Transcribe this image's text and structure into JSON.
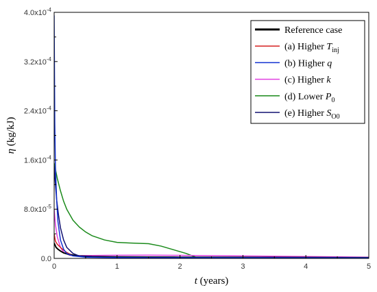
{
  "chart_data": {
    "type": "line",
    "xlabel": {
      "sym": "t",
      "rest": " (years)"
    },
    "ylabel": {
      "sym": "η",
      "rest": " (kg/kJ)"
    },
    "xlim": [
      0,
      5
    ],
    "ylim": [
      0,
      0.0004
    ],
    "x_ticks": [
      {
        "value": 0,
        "label": "0"
      },
      {
        "value": 1,
        "label": "1"
      },
      {
        "value": 2,
        "label": "2"
      },
      {
        "value": 3,
        "label": "3"
      },
      {
        "value": 4,
        "label": "4"
      },
      {
        "value": 5,
        "label": "5"
      }
    ],
    "y_ticks": [
      {
        "value": 0,
        "label": "0.0"
      },
      {
        "value": 8e-05,
        "label": "8.0x10",
        "exp": "-5"
      },
      {
        "value": 0.00016,
        "label": "1.6x10",
        "exp": "-4"
      },
      {
        "value": 0.00024,
        "label": "2.4x10",
        "exp": "-4"
      },
      {
        "value": 0.00032,
        "label": "3.2x10",
        "exp": "-4"
      },
      {
        "value": 0.0004,
        "label": "4.0x10",
        "exp": "-4"
      }
    ],
    "grid": false,
    "legend_position": "top-right",
    "series": [
      {
        "name": "Reference case",
        "name_parts": [
          "Reference case"
        ],
        "color": "#000000",
        "x": [
          0,
          0.03,
          0.06,
          0.1,
          0.15,
          0.25,
          0.4,
          0.6,
          1.0,
          1.5,
          2.0,
          3.0,
          4.0,
          5.0
        ],
        "y": [
          2.5e-05,
          1.8e-05,
          1.5e-05,
          1.2e-05,
          9e-06,
          6e-06,
          4e-06,
          3e-06,
          2.5e-06,
          2.2e-06,
          2e-06,
          1.8e-06,
          1.5e-06,
          1.2e-06
        ]
      },
      {
        "name": "(a) Higher Tinj",
        "name_parts": [
          "(a) Higher ",
          "T",
          "inj"
        ],
        "color": "#d62020",
        "x": [
          0,
          0.02,
          0.05,
          0.08,
          0.12,
          0.18,
          0.25,
          0.35,
          0.5,
          0.8,
          1.2,
          2.0,
          3.0,
          4.0,
          5.0
        ],
        "y": [
          4e-05,
          2.8e-05,
          2.3e-05,
          2e-05,
          1.6e-05,
          1.1e-05,
          7e-06,
          4e-06,
          3e-06,
          2.5e-06,
          2.2e-06,
          2e-06,
          1.8e-06,
          1.5e-06,
          1.2e-06
        ]
      },
      {
        "name": "(b) Higher q",
        "name_parts": [
          "(b) Higher ",
          "q",
          ""
        ],
        "color": "#1030d0",
        "x": [
          0,
          0.01,
          0.02,
          0.04,
          0.06,
          0.1,
          0.15,
          0.2,
          0.3,
          0.5,
          0.8,
          1.5,
          2.5,
          5.0
        ],
        "y": [
          0.000395,
          0.00022,
          0.00015,
          9.5e-05,
          6e-05,
          3e-05,
          1.5e-05,
          8e-06,
          4e-06,
          2e-06,
          1.5e-06,
          1e-06,
          1e-06,
          8e-07
        ]
      },
      {
        "name": "(c) Higher k",
        "name_parts": [
          "(c) Higher ",
          "k",
          ""
        ],
        "color": "#e040e0",
        "x": [
          0,
          0.02,
          0.05,
          0.1,
          0.15,
          0.25,
          0.4,
          0.6,
          0.8,
          1.0,
          1.5,
          2.0,
          2.5,
          3.0,
          4.0,
          5.0
        ],
        "y": [
          8e-05,
          5.5e-05,
          3.5e-05,
          1.8e-05,
          1e-05,
          5e-06,
          4.5e-06,
          4.8e-06,
          5e-06,
          5.2e-06,
          5.3e-06,
          5e-06,
          4.5e-06,
          4e-06,
          3e-06,
          2e-06
        ]
      },
      {
        "name": "(d) Lower P0",
        "name_parts": [
          "(d) Lower ",
          "P",
          "0"
        ],
        "color": "#1a8a1a",
        "x": [
          0,
          0.05,
          0.1,
          0.15,
          0.2,
          0.3,
          0.4,
          0.5,
          0.6,
          0.8,
          1.0,
          1.2,
          1.5,
          1.7,
          1.9,
          2.1,
          2.2,
          2.25,
          3.0,
          4.0,
          5.0
        ],
        "y": [
          0.000155,
          0.00013,
          0.00011,
          9.3e-05,
          8e-05,
          6.2e-05,
          5.1e-05,
          4.3e-05,
          3.7e-05,
          3e-05,
          2.6e-05,
          2.5e-05,
          2.4e-05,
          2e-05,
          1.4e-05,
          8e-06,
          4e-06,
          2e-06,
          1.5e-06,
          1.2e-06,
          1e-06
        ]
      },
      {
        "name": "(e) Higher SO0",
        "name_parts": [
          "(e) Higher ",
          "S",
          "O0"
        ],
        "color": "#101070",
        "x": [
          0,
          0.02,
          0.04,
          0.07,
          0.1,
          0.15,
          0.2,
          0.3,
          0.4,
          0.6,
          0.8,
          1.2,
          2.0,
          3.0,
          4.0,
          5.0
        ],
        "y": [
          0.00015,
          0.00012,
          9.5e-05,
          7e-05,
          5e-05,
          3e-05,
          1.8e-05,
          8e-06,
          4e-06,
          2.5e-06,
          2e-06,
          1.8e-06,
          1.6e-06,
          1.4e-06,
          1.2e-06,
          1e-06
        ]
      }
    ]
  }
}
